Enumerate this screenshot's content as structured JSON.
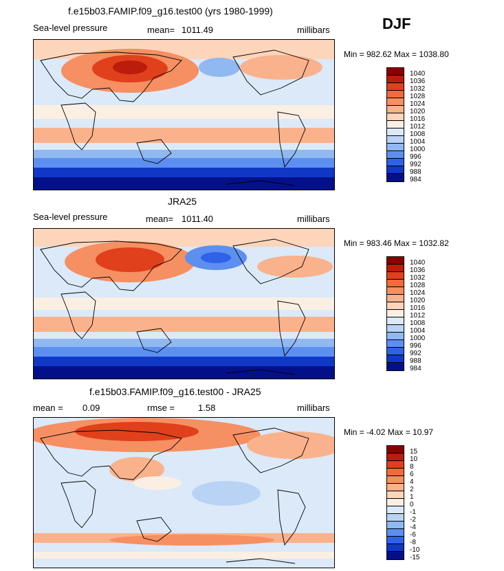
{
  "season": "DJF",
  "chart_data": [
    {
      "type": "heatmap",
      "title": "f.e15b03.FAMIP.f09_g16.test00 (yrs 1980-1999)",
      "variable": "Sea-level pressure",
      "stat_label": "mean=",
      "stat_value": "1011.49",
      "units": "millibars",
      "minmax": "Min = 982.62 Max = 1038.80",
      "min": 982.62,
      "max": 1038.8,
      "colorbar_levels": [
        "1040",
        "1036",
        "1032",
        "1028",
        "1024",
        "1020",
        "1016",
        "1012",
        "1008",
        "1004",
        "1000",
        "996",
        "992",
        "988",
        "984"
      ],
      "colorbar_colors": [
        "#8b0000",
        "#bb1c0c",
        "#e0401c",
        "#f26a3c",
        "#f68f62",
        "#f9b28c",
        "#fcd5bb",
        "#fbefe3",
        "#dbe9f8",
        "#b9d3f5",
        "#90b8f1",
        "#5d8ff0",
        "#2f62e8",
        "#1038c6",
        "#04108a"
      ]
    },
    {
      "type": "heatmap",
      "title": "JRA25",
      "variable": "Sea-level pressure",
      "stat_label": "mean=",
      "stat_value": "1011.40",
      "units": "millibars",
      "minmax": "Min = 983.46 Max = 1032.82",
      "min": 983.46,
      "max": 1032.82,
      "colorbar_levels": [
        "1040",
        "1036",
        "1032",
        "1028",
        "1024",
        "1020",
        "1016",
        "1012",
        "1008",
        "1004",
        "1000",
        "996",
        "992",
        "988",
        "984"
      ],
      "colorbar_colors": [
        "#8b0000",
        "#bb1c0c",
        "#e0401c",
        "#f26a3c",
        "#f68f62",
        "#f9b28c",
        "#fcd5bb",
        "#fbefe3",
        "#dbe9f8",
        "#b9d3f5",
        "#90b8f1",
        "#5d8ff0",
        "#2f62e8",
        "#1038c6",
        "#04108a"
      ]
    },
    {
      "type": "heatmap",
      "title": "f.e15b03.FAMIP.f09_g16.test00 - JRA25",
      "stat_label": "mean =",
      "stat_value": "0.09",
      "rmse_label": "rmse =",
      "rmse_value": "1.58",
      "units": "millibars",
      "minmax": "Min =  -4.02 Max =  10.97",
      "min": -4.02,
      "max": 10.97,
      "colorbar_levels": [
        "15",
        "10",
        "8",
        "6",
        "4",
        "2",
        "1",
        "0",
        "-1",
        "-2",
        "-4",
        "-6",
        "-8",
        "-10",
        "-15"
      ],
      "colorbar_colors": [
        "#8b0000",
        "#bb1c0c",
        "#e0401c",
        "#f26a3c",
        "#f68f62",
        "#f9b28c",
        "#fcd5bb",
        "#fbefe3",
        "#dbe9f8",
        "#b9d3f5",
        "#90b8f1",
        "#5d8ff0",
        "#2f62e8",
        "#1038c6",
        "#04108a"
      ]
    }
  ]
}
